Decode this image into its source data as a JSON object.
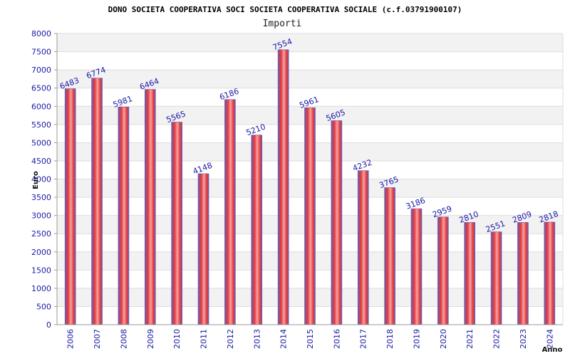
{
  "chart_data": {
    "type": "bar",
    "title": "DONO SOCIETA COOPERATIVA SOCI SOCIETA COOPERATIVA SOCIALE (c.f.03791900107)",
    "subtitle": "Importi",
    "xlabel": "Anno",
    "ylabel": "Euro",
    "ylim": [
      0,
      8000
    ],
    "ytick_step": 500,
    "categories": [
      "2006",
      "2007",
      "2008",
      "2009",
      "2010",
      "2011",
      "2012",
      "2013",
      "2014",
      "2015",
      "2016",
      "2017",
      "2018",
      "2019",
      "2020",
      "2021",
      "2022",
      "2023",
      "2024"
    ],
    "values": [
      6483,
      6774,
      5981,
      6464,
      5565,
      4148,
      6186,
      5210,
      7554,
      5961,
      5605,
      4232,
      3765,
      3186,
      2959,
      2810,
      2551,
      2809,
      2818
    ],
    "colors": {
      "bar_center": "#f4a3a3",
      "bar_mid": "#e83a3a",
      "bar_edge": "#6a5bb0",
      "band_alt": "#f2f2f2",
      "grid": "#dddddd",
      "axis": "#999999"
    }
  }
}
